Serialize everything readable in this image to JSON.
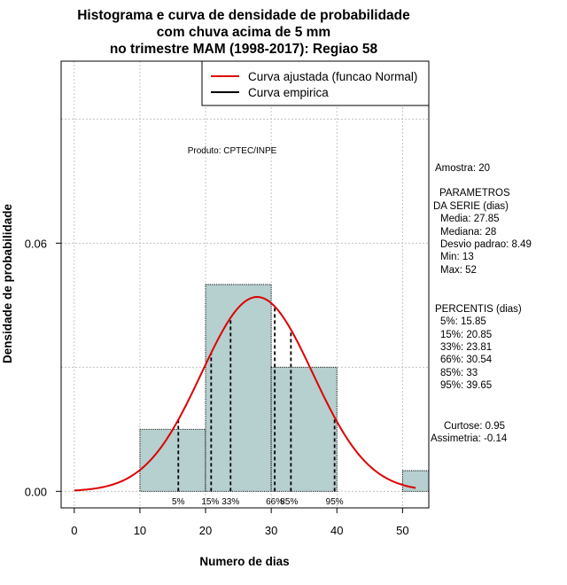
{
  "chart_data": {
    "type": "bar",
    "title_lines": [
      "Histograma e curva de densidade de probabilidade",
      "com chuva acima de 5 mm",
      "no trimestre MAM (1998-2017): Regiao 58"
    ],
    "xlabel": "Numero de dias",
    "ylabel": "Densidade de probabilidade",
    "xlim": [
      -2,
      54
    ],
    "ylim": [
      -0.004,
      0.104
    ],
    "x_ticks": [
      0,
      10,
      20,
      30,
      40,
      50
    ],
    "y_ticks": [
      0.0,
      0.06
    ],
    "y_tick_labels": [
      "0.00",
      "0.06"
    ],
    "grid": true,
    "histogram": {
      "bins": [
        [
          10,
          20
        ],
        [
          20,
          30
        ],
        [
          30,
          40
        ],
        [
          40,
          50
        ],
        [
          50,
          60
        ]
      ],
      "densities": [
        0.015,
        0.05,
        0.03,
        0.0,
        0.005
      ],
      "color": "#b6cfcf"
    },
    "normal_fit": {
      "mean": 27.85,
      "sd": 8.49,
      "x_range": [
        0,
        52
      ],
      "color": "#dd0000"
    },
    "percentiles": [
      {
        "label": "5%",
        "value": 15.85
      },
      {
        "label": "15%",
        "value": 20.85
      },
      {
        "label": "33%",
        "value": 23.81
      },
      {
        "label": "66%",
        "value": 30.54
      },
      {
        "label": "85%",
        "value": 33
      },
      {
        "label": "95%",
        "value": 39.65
      }
    ],
    "legend": {
      "position": "top-right",
      "entries": [
        {
          "label": "Curva ajustada (funcao Normal)",
          "color": "#dd0000"
        },
        {
          "label": "Curva empirica",
          "color": "#000000"
        }
      ]
    },
    "annotation": "Produto: CPTEC/INPE",
    "side_panel": {
      "amostra": "Amostra: 20",
      "parametros_title": [
        "PARAMETROS",
        "DA SERIE (dias)"
      ],
      "parametros": [
        "Media: 27.85",
        "Mediana: 28",
        "Desvio padrao: 8.49",
        "Min: 13",
        "Max: 52"
      ],
      "percentis_title": "PERCENTIS (dias)",
      "percentis": [
        "5%: 15.85",
        "15%: 20.85",
        "33%: 23.81",
        "66%: 30.54",
        "85%: 33",
        "95%: 39.65"
      ],
      "curtose": "Curtose: 0.95",
      "assimetria": "Assimetria: -0.14"
    }
  }
}
